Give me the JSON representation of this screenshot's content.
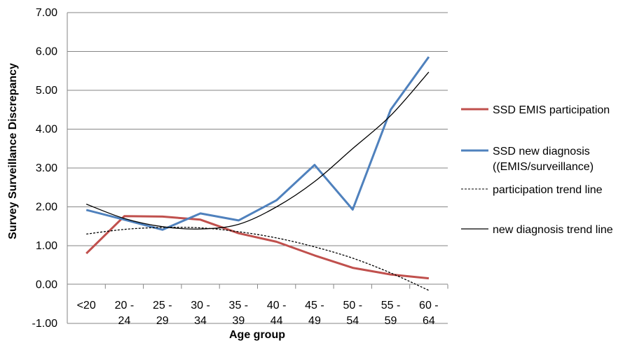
{
  "chart_data": {
    "type": "line",
    "xlabel": "Age group",
    "ylabel": "Survey Surveillance Discrepancy",
    "ylim": [
      -1.0,
      7.0
    ],
    "yticks": [
      "7.00",
      "6.00",
      "5.00",
      "4.00",
      "3.00",
      "2.00",
      "1.00",
      "0.00",
      "-1.00"
    ],
    "categories": [
      [
        "<20"
      ],
      [
        "20 -",
        "24"
      ],
      [
        "25 -",
        "29"
      ],
      [
        "30 -",
        "34"
      ],
      [
        "35 -",
        "39"
      ],
      [
        "40 -",
        "44"
      ],
      [
        "45 -",
        "49"
      ],
      [
        "50 -",
        "54"
      ],
      [
        "55 -",
        "59"
      ],
      [
        "60 -",
        "64"
      ]
    ],
    "grid": true,
    "legend_position": "right",
    "series": [
      {
        "name": "SSD EMIS participation",
        "color": "#c0504d",
        "values": [
          0.8,
          1.76,
          1.75,
          1.67,
          1.32,
          1.1,
          0.75,
          0.43,
          0.26,
          0.16
        ]
      },
      {
        "name": "SSD new diagnosis ((EMIS/surveillance)",
        "legend_lines": [
          "SSD new diagnosis",
          "((EMIS/surveillance)"
        ],
        "color": "#4f81bd",
        "values": [
          1.92,
          1.67,
          1.41,
          1.83,
          1.65,
          2.17,
          3.08,
          1.93,
          4.5,
          5.86
        ]
      }
    ],
    "trend_lines": [
      {
        "name": "participation trend line",
        "style": "dashed",
        "color": "#000000",
        "values": [
          1.3,
          1.42,
          1.47,
          1.46,
          1.36,
          1.2,
          0.97,
          0.68,
          0.3,
          -0.15
        ]
      },
      {
        "name": "new diagnosis trend line",
        "style": "solid",
        "color": "#000000",
        "values": [
          2.07,
          1.7,
          1.49,
          1.43,
          1.55,
          2.0,
          2.65,
          3.5,
          4.35,
          5.47
        ]
      }
    ]
  }
}
